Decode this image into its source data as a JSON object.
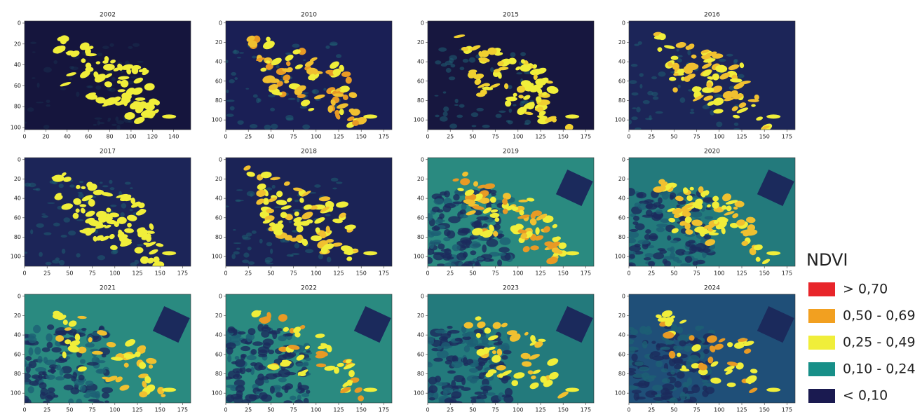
{
  "panels": [
    {
      "title": "2002",
      "xlim": [
        0,
        156
      ],
      "ylim": [
        -2,
        102
      ],
      "xticks": [
        0,
        20,
        40,
        60,
        80,
        100,
        120,
        140
      ],
      "yticks": [
        0,
        20,
        40,
        60,
        80,
        100
      ]
    },
    {
      "title": "2010",
      "xlim": [
        0,
        184
      ],
      "ylim": [
        -2,
        110
      ],
      "xticks": [
        0,
        25,
        50,
        75,
        100,
        125,
        150,
        175
      ],
      "yticks": [
        0,
        20,
        40,
        60,
        80,
        100
      ]
    },
    {
      "title": "2015",
      "xlim": [
        0,
        184
      ],
      "ylim": [
        -2,
        110
      ],
      "xticks": [
        0,
        25,
        50,
        75,
        100,
        125,
        150,
        175
      ],
      "yticks": [
        0,
        20,
        40,
        60,
        80,
        100
      ]
    },
    {
      "title": "2016",
      "xlim": [
        0,
        184
      ],
      "ylim": [
        -2,
        110
      ],
      "xticks": [
        0,
        25,
        50,
        75,
        100,
        125,
        150,
        175
      ],
      "yticks": [
        0,
        20,
        40,
        60,
        80,
        100
      ]
    },
    {
      "title": "2017",
      "xlim": [
        0,
        184
      ],
      "ylim": [
        -2,
        110
      ],
      "xticks": [
        0,
        25,
        50,
        75,
        100,
        125,
        150,
        175
      ],
      "yticks": [
        0,
        20,
        40,
        60,
        80,
        100
      ]
    },
    {
      "title": "2018",
      "xlim": [
        0,
        184
      ],
      "ylim": [
        -2,
        110
      ],
      "xticks": [
        0,
        25,
        50,
        75,
        100,
        125,
        150,
        175
      ],
      "yticks": [
        0,
        20,
        40,
        60,
        80,
        100
      ]
    },
    {
      "title": "2019",
      "xlim": [
        0,
        184
      ],
      "ylim": [
        -2,
        110
      ],
      "xticks": [
        0,
        25,
        50,
        75,
        100,
        125,
        150,
        175
      ],
      "yticks": [
        0,
        20,
        40,
        60,
        80,
        100
      ]
    },
    {
      "title": "2020",
      "xlim": [
        0,
        184
      ],
      "ylim": [
        -2,
        110
      ],
      "xticks": [
        0,
        25,
        50,
        75,
        100,
        125,
        150,
        175
      ],
      "yticks": [
        0,
        20,
        40,
        60,
        80,
        100
      ]
    },
    {
      "title": "2021",
      "xlim": [
        0,
        184
      ],
      "ylim": [
        -2,
        110
      ],
      "xticks": [
        0,
        25,
        50,
        75,
        100,
        125,
        150,
        175
      ],
      "yticks": [
        0,
        20,
        40,
        60,
        80,
        100
      ]
    },
    {
      "title": "2022",
      "xlim": [
        0,
        184
      ],
      "ylim": [
        -2,
        110
      ],
      "xticks": [
        0,
        25,
        50,
        75,
        100,
        125,
        150,
        175
      ],
      "yticks": [
        0,
        20,
        40,
        60,
        80,
        100
      ]
    },
    {
      "title": "2023",
      "xlim": [
        0,
        184
      ],
      "ylim": [
        -2,
        110
      ],
      "xticks": [
        0,
        25,
        50,
        75,
        100,
        125,
        150,
        175
      ],
      "yticks": [
        0,
        20,
        40,
        60,
        80,
        100
      ]
    },
    {
      "title": "2024",
      "xlim": [
        0,
        184
      ],
      "ylim": [
        -2,
        110
      ],
      "xticks": [
        0,
        25,
        50,
        75,
        100,
        125,
        150,
        175
      ],
      "yticks": [
        0,
        20,
        40,
        60,
        80,
        100
      ]
    }
  ],
  "legend": {
    "title": "NDVI",
    "entries": [
      {
        "label": "> 0,70",
        "color": "#e8252a"
      },
      {
        "label": "0,50 - 0,69",
        "color": "#f2a020"
      },
      {
        "label": "0,25 - 0,49",
        "color": "#f0ee3a"
      },
      {
        "label": "0,10 - 0,24",
        "color": "#178f88"
      },
      {
        "label": "< 0,10",
        "color": "#1a1a50"
      }
    ]
  }
}
